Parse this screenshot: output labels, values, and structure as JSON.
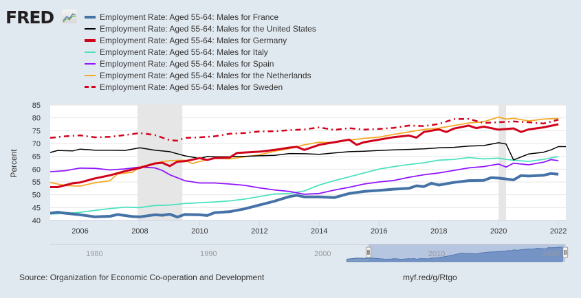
{
  "logo": {
    "text": "FRED",
    "icon": "chart-line-icon"
  },
  "chart_data": {
    "type": "line",
    "title": "",
    "xlabel": "",
    "ylabel": "Percent",
    "ylim": [
      40,
      85
    ],
    "xlim": [
      2005.0,
      2022.25
    ],
    "yticks": [
      40,
      45,
      50,
      55,
      60,
      65,
      70,
      75,
      80,
      85
    ],
    "xticks": [
      2006,
      2008,
      2010,
      2012,
      2014,
      2016,
      2018,
      2020,
      2022
    ],
    "grid": true,
    "legend_position": "top",
    "recessions": [
      [
        2007.92,
        2009.42
      ],
      [
        2020.0,
        2020.25
      ]
    ],
    "series": [
      {
        "name": "Employment Rate: Aged 55-64: Males for France",
        "color": "#4572a7",
        "width": 4,
        "dash": "",
        "x": [
          2005,
          2005.25,
          2005.5,
          2006,
          2006.5,
          2007,
          2007.25,
          2007.75,
          2008,
          2008.5,
          2008.75,
          2009,
          2009.25,
          2009.5,
          2010,
          2010.25,
          2010.5,
          2011,
          2011.5,
          2012,
          2012.5,
          2013,
          2013.25,
          2013.5,
          2014,
          2014.5,
          2015,
          2015.5,
          2016,
          2016.5,
          2017,
          2017.25,
          2017.5,
          2017.75,
          2018,
          2018.5,
          2019,
          2019.5,
          2019.75,
          2020,
          2020.5,
          2020.75,
          2021,
          2021.5,
          2021.75,
          2022
        ],
        "y": [
          42.8,
          43.2,
          42.8,
          42.2,
          41.4,
          41.6,
          42.3,
          41.5,
          41.4,
          42.2,
          42.0,
          42.4,
          41.3,
          42.3,
          42.2,
          41.9,
          43.0,
          43.4,
          44.5,
          46.0,
          47.5,
          49.3,
          49.8,
          49.2,
          49.2,
          48.9,
          50.5,
          51.3,
          51.7,
          52.2,
          52.5,
          53.5,
          53.2,
          54.5,
          53.8,
          54.8,
          55.5,
          55.6,
          56.7,
          56.5,
          55.8,
          57.5,
          57.3,
          57.6,
          58.3,
          58.0
        ]
      },
      {
        "name": "Employment Rate: Aged 55-64: Males for the United States",
        "color": "#000000",
        "width": 1.5,
        "dash": "",
        "x": [
          2005,
          2005.25,
          2005.75,
          2006,
          2006.5,
          2007,
          2007.5,
          2008,
          2008.5,
          2009,
          2009.5,
          2010,
          2010.25,
          2010.5,
          2011,
          2011.5,
          2012,
          2012.5,
          2013,
          2013.5,
          2014,
          2014.5,
          2015,
          2015.5,
          2016,
          2016.5,
          2017,
          2017.5,
          2018,
          2018.5,
          2019,
          2019.5,
          2020,
          2020.25,
          2020.5,
          2021,
          2021.5,
          2021.75,
          2022,
          2022.25
        ],
        "y": [
          66.5,
          67.3,
          67.1,
          67.8,
          67.4,
          67.4,
          67.3,
          68.3,
          67.4,
          66.8,
          65.2,
          64.2,
          64.9,
          64.8,
          64.8,
          65.0,
          65.2,
          65.4,
          66.1,
          66.0,
          65.8,
          66.3,
          66.8,
          67.0,
          67.3,
          67.5,
          67.7,
          67.9,
          68.3,
          68.5,
          69.0,
          69.2,
          70.3,
          69.8,
          63.6,
          65.9,
          66.6,
          67.5,
          68.8,
          68.8
        ]
      },
      {
        "name": "Employment Rate: Aged 55-64: Males for Germany",
        "color": "#d0021b",
        "width": 3,
        "dash": "",
        "x": [
          2005,
          2005.25,
          2005.75,
          2006,
          2006.5,
          2007,
          2007.5,
          2008,
          2008.5,
          2008.75,
          2009,
          2009.25,
          2009.5,
          2010,
          2010.25,
          2010.5,
          2011,
          2011.25,
          2011.5,
          2012,
          2012.5,
          2013,
          2013.25,
          2013.5,
          2014,
          2014.5,
          2015,
          2015.25,
          2015.5,
          2016,
          2016.5,
          2017,
          2017.25,
          2017.5,
          2018,
          2018.25,
          2018.5,
          2019,
          2019.25,
          2019.5,
          2020,
          2020.5,
          2020.75,
          2021,
          2021.5,
          2022
        ],
        "y": [
          53.0,
          53.0,
          54.5,
          54.8,
          56.4,
          57.6,
          59.2,
          60.5,
          62.2,
          62.5,
          61.2,
          62.9,
          63.1,
          64.3,
          63.6,
          64.3,
          64.5,
          66.3,
          66.5,
          66.8,
          67.5,
          68.4,
          68.7,
          67.5,
          69.5,
          70.5,
          71.5,
          69.5,
          70.5,
          71.5,
          72.5,
          73.1,
          72.3,
          74.5,
          75.5,
          74.5,
          75.8,
          77.0,
          76.0,
          76.6,
          75.4,
          75.9,
          74.5,
          75.5,
          76.3,
          77.5
        ]
      },
      {
        "name": "Employment Rate: Aged 55-64: Males for Italy",
        "color": "#4ee1c1",
        "width": 1.8,
        "dash": "",
        "x": [
          2005,
          2005.5,
          2006,
          2006.5,
          2007,
          2007.5,
          2008,
          2008.5,
          2009,
          2009.5,
          2010,
          2010.5,
          2011,
          2011.5,
          2012,
          2012.5,
          2013,
          2013.5,
          2014,
          2014.5,
          2015,
          2015.5,
          2016,
          2016.5,
          2017,
          2017.5,
          2018,
          2018.5,
          2019,
          2019.5,
          2020,
          2020.25,
          2020.5,
          2021,
          2021.5,
          2022
        ],
        "y": [
          42.5,
          42.7,
          43.2,
          43.9,
          44.6,
          45.2,
          45.0,
          45.8,
          46.0,
          46.6,
          46.9,
          47.2,
          47.6,
          48.3,
          49.3,
          50.3,
          50.5,
          51.5,
          53.8,
          55.5,
          57.0,
          58.5,
          60.0,
          61.0,
          61.8,
          62.5,
          63.5,
          63.8,
          64.5,
          64.0,
          64.3,
          63.8,
          63.5,
          63.0,
          63.8,
          64.9
        ]
      },
      {
        "name": "Employment Rate: Aged 55-64: Males for Spain",
        "color": "#9013fe",
        "width": 1.8,
        "dash": "",
        "x": [
          2005,
          2005.5,
          2006,
          2006.5,
          2007,
          2007.5,
          2008,
          2008.5,
          2008.75,
          2009,
          2009.5,
          2010,
          2010.5,
          2011,
          2011.5,
          2012,
          2012.5,
          2013,
          2013.5,
          2014,
          2014.5,
          2015,
          2015.5,
          2016,
          2016.5,
          2017,
          2017.5,
          2018,
          2018.5,
          2019,
          2019.5,
          2020,
          2020.25,
          2020.5,
          2021,
          2021.5,
          2021.75,
          2022
        ],
        "y": [
          59.0,
          59.4,
          60.4,
          60.3,
          59.7,
          60.1,
          60.8,
          60.5,
          59.5,
          57.8,
          55.5,
          54.6,
          54.6,
          54.2,
          53.7,
          52.7,
          51.9,
          51.3,
          50.2,
          50.5,
          51.8,
          52.9,
          54.2,
          55.0,
          55.6,
          56.8,
          57.8,
          58.5,
          59.5,
          60.5,
          61.0,
          62.0,
          60.8,
          62.3,
          61.7,
          62.7,
          63.7,
          63.3
        ]
      },
      {
        "name": "Employment Rate: Aged 55-64: Males for the Netherlands",
        "color": "#f5a623",
        "width": 1.8,
        "dash": "",
        "x": [
          2005,
          2005.5,
          2006,
          2006.5,
          2007,
          2007.25,
          2007.75,
          2008,
          2008.5,
          2009,
          2009.5,
          2009.75,
          2010,
          2010.5,
          2011,
          2011.5,
          2012,
          2012.5,
          2013,
          2013.5,
          2014,
          2014.5,
          2015,
          2015.5,
          2016,
          2016.5,
          2017,
          2017.5,
          2018,
          2018.5,
          2019,
          2019.5,
          2020,
          2020.25,
          2020.5,
          2021,
          2021.5,
          2022
        ],
        "y": [
          54.8,
          53.6,
          53.4,
          54.7,
          55.5,
          58.1,
          58.8,
          60.8,
          62.4,
          63.3,
          63.5,
          62.2,
          63.0,
          64.2,
          64.0,
          64.8,
          65.6,
          67.0,
          68.0,
          69.5,
          70.5,
          70.3,
          71.3,
          72.0,
          72.5,
          73.6,
          74.5,
          75.5,
          76.0,
          77.0,
          78.0,
          78.5,
          80.3,
          79.5,
          79.8,
          78.8,
          79.5,
          79.8
        ]
      },
      {
        "name": "Employment Rate: Aged 55-64: Males for Sweden",
        "color": "#d0021b",
        "width": 2.5,
        "dash": "8,5,2,5",
        "x": [
          2005,
          2005.5,
          2006,
          2006.5,
          2007,
          2007.5,
          2008,
          2008.5,
          2009,
          2009.25,
          2009.5,
          2010,
          2010.5,
          2011,
          2011.5,
          2012,
          2012.5,
          2013,
          2013.5,
          2014,
          2014.5,
          2015,
          2015.5,
          2016,
          2016.5,
          2017,
          2017.5,
          2018,
          2018.5,
          2019,
          2019.5,
          2020,
          2020.5,
          2021,
          2021.5,
          2022
        ],
        "y": [
          72.2,
          72.8,
          73.2,
          72.4,
          72.6,
          73.3,
          74.1,
          73.3,
          71.3,
          71.1,
          72.2,
          72.4,
          72.8,
          73.8,
          74.1,
          74.7,
          74.8,
          75.2,
          75.5,
          76.3,
          75.3,
          76.0,
          75.4,
          75.7,
          76.1,
          77.0,
          76.8,
          77.6,
          79.5,
          79.6,
          78.0,
          78.3,
          78.6,
          78.3,
          77.8,
          79.3
        ]
      }
    ]
  },
  "navigator": {
    "labels": [
      "1980",
      "1990",
      "2000",
      "2010",
      "2020"
    ],
    "range_years": [
      1977.1,
      2022.3
    ],
    "selected": [
      2005.0,
      2022.25
    ],
    "handle_icon": "drag-handle-icon"
  },
  "footer": {
    "source": "Source: Organization for Economic Co-operation and Development",
    "link": "myf.red/g/Rtgo"
  }
}
